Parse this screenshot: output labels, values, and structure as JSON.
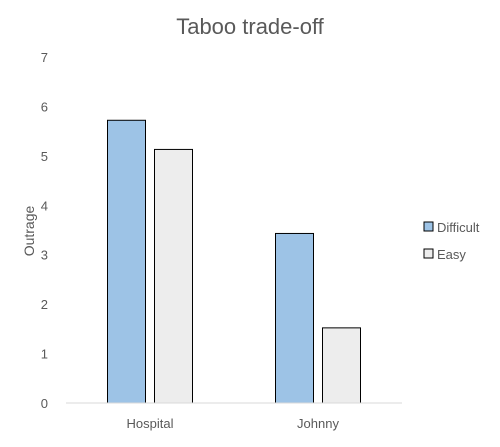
{
  "chart_data": {
    "type": "bar",
    "title": "Taboo trade-off",
    "xlabel": "",
    "ylabel": "Outrage",
    "categories": [
      "Hospital",
      "Johnny"
    ],
    "series": [
      {
        "name": "Difficult",
        "values": [
          5.72,
          3.43
        ],
        "color": "#9dc3e6"
      },
      {
        "name": "Easy",
        "values": [
          5.13,
          1.52
        ],
        "color": "#ededed"
      }
    ],
    "ylim": [
      0,
      7
    ],
    "yticks": [
      0,
      1,
      2,
      3,
      4,
      5,
      6,
      7
    ],
    "grid": false,
    "legend": "right",
    "bar_outline": "#000000"
  }
}
